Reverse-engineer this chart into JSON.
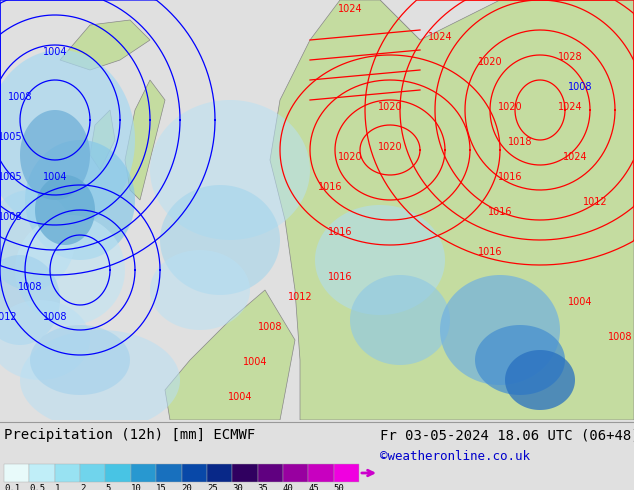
{
  "title_left": "Precipitation (12h) [mm] ECMWF",
  "title_right": "Fr 03-05-2024 18.06 UTC (06+48)",
  "credit": "©weatheronline.co.uk",
  "legend_labels": [
    "0.1",
    "0.5",
    "1",
    "2",
    "5",
    "10",
    "15",
    "20",
    "25",
    "30",
    "35",
    "40",
    "45",
    "50"
  ],
  "legend_colors_actual": [
    "#e8fafa",
    "#c0eef8",
    "#98e2f2",
    "#70d4ec",
    "#48c4e4",
    "#2898d0",
    "#1870be",
    "#0848a8",
    "#082888",
    "#300060",
    "#600080",
    "#9800a0",
    "#c800c0",
    "#f000e0"
  ],
  "bg_color": "#e0e0e0",
  "info_bar_color": "#ffffff",
  "title_fontsize": 10,
  "credit_color": "#0000cc",
  "credit_fontsize": 9,
  "map_sea_color": "#d0e8f8",
  "map_land_color": "#c8dca8",
  "precip_colors": {
    "light_blue": "#a8d8f0",
    "medium_blue": "#70b8e8",
    "dark_blue": "#3888d0",
    "cyan_light": "#b8e8f8"
  }
}
